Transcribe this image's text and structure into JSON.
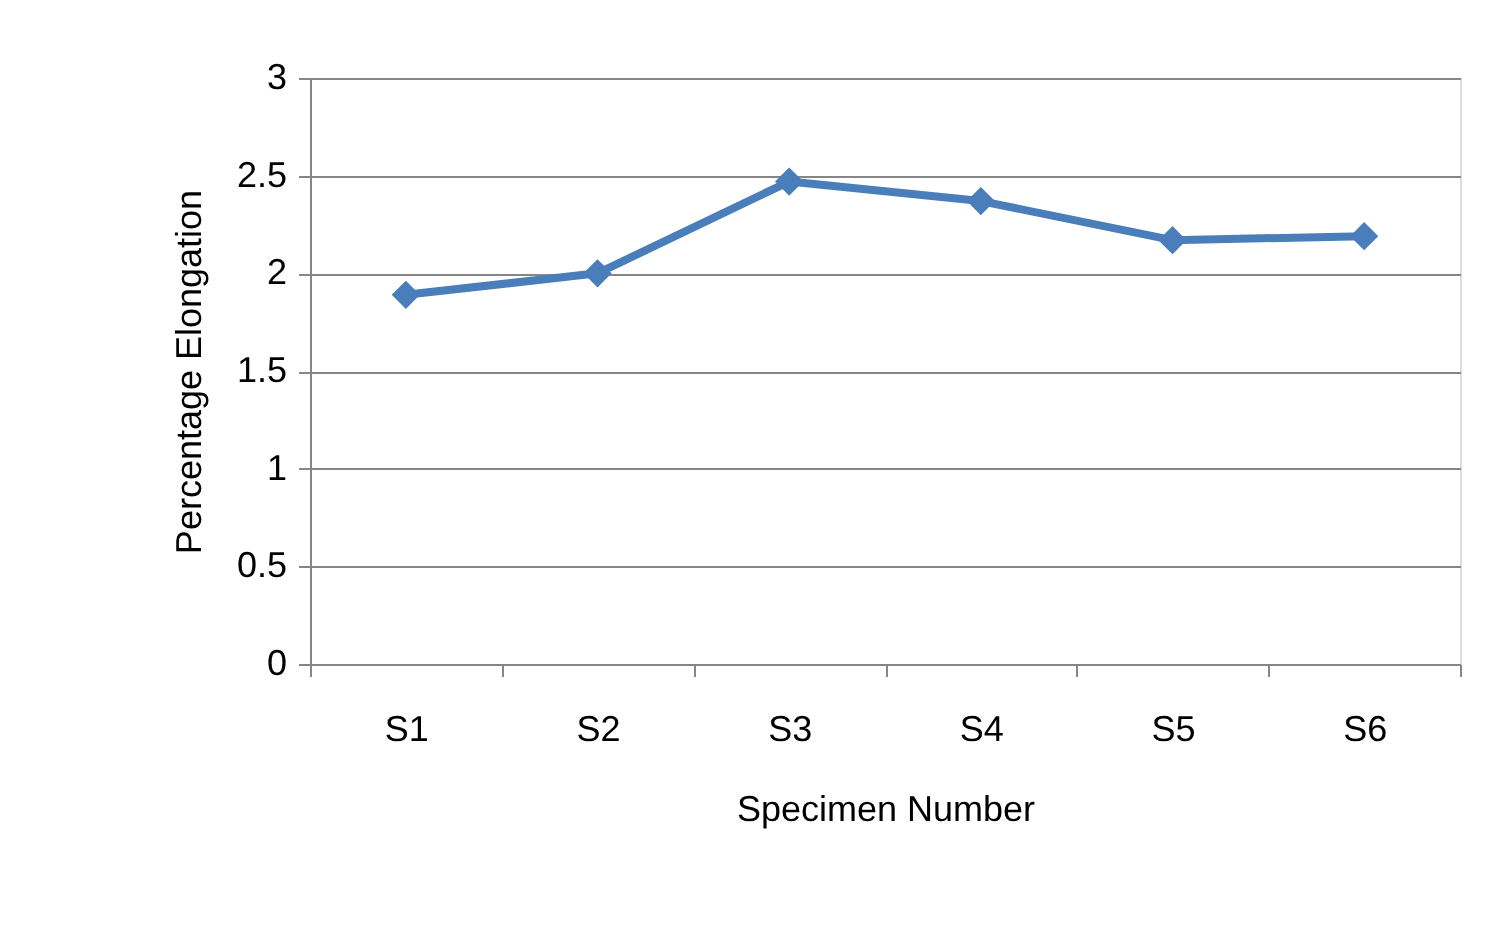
{
  "chart_data": {
    "type": "line",
    "xlabel": "Specimen Number",
    "ylabel": "Percentage Elongation",
    "categories": [
      "S1",
      "S2",
      "S3",
      "S4",
      "S5",
      "S6"
    ],
    "series": [
      {
        "color": "#4a7ebb",
        "values": [
          1.89,
          2.0,
          2.47,
          2.37,
          2.17,
          2.19
        ]
      }
    ],
    "ylim": [
      0,
      3
    ],
    "yticks": [
      0,
      0.5,
      1,
      1.5,
      2,
      2.5,
      3
    ],
    "grid": "y",
    "marker": "diamond",
    "line_style": "solid"
  }
}
